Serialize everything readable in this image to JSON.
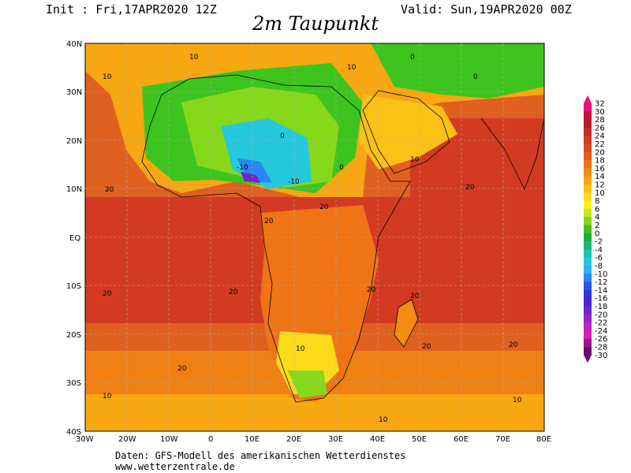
{
  "header": {
    "init": "Init : Fri,17APR2020 12Z",
    "valid": "Valid: Sun,19APR2020 00Z",
    "title": "2m Taupunkt"
  },
  "map": {
    "lon_ticks": [
      "30W",
      "20W",
      "10W",
      "0",
      "10E",
      "20E",
      "30E",
      "40E",
      "50E",
      "60E",
      "70E",
      "80E"
    ],
    "lat_ticks": [
      "40N",
      "30N",
      "20N",
      "10N",
      "EQ",
      "10S",
      "20S",
      "30S",
      "40S"
    ],
    "contour_labels": [
      "-10",
      "0",
      "10",
      "20"
    ]
  },
  "colorbar": {
    "values": [
      "32",
      "30",
      "28",
      "26",
      "24",
      "22",
      "20",
      "18",
      "16",
      "14",
      "12",
      "10",
      "8",
      "6",
      "4",
      "2",
      "0",
      "-2",
      "-4",
      "-6",
      "-8",
      "-10",
      "-12",
      "-14",
      "-16",
      "-18",
      "-20",
      "-22",
      "-24",
      "-26",
      "-28",
      "-30"
    ],
    "colors": [
      "#e8127a",
      "#c8103a",
      "#b81a2a",
      "#c42a2a",
      "#d23a22",
      "#dd4a1e",
      "#e65e1a",
      "#ee7416",
      "#f28c12",
      "#f7a712",
      "#fbc115",
      "#fddb1b",
      "#f6f31c",
      "#c8ea1a",
      "#86d81a",
      "#3ec41e",
      "#19b13a",
      "#1eb77a",
      "#22c3b0",
      "#26c9dc",
      "#2ab4f2",
      "#2a86f0",
      "#2a56e8",
      "#2c34dc",
      "#4a26d6",
      "#7026ce",
      "#9826c6",
      "#bc22c0",
      "#d81eb0",
      "#a0148c",
      "#6a0a70"
    ]
  },
  "footer": {
    "line1": "Daten: GFS-Modell des amerikanischen Wetterdienstes",
    "line2": "www.wetterzentrale.de"
  }
}
